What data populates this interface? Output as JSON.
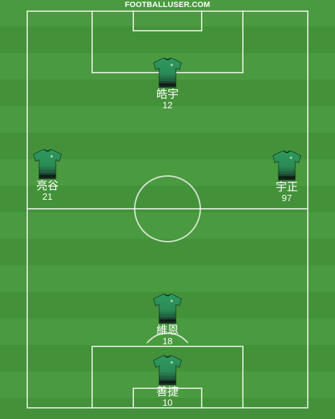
{
  "site": {
    "brand": "FOOTBALLUSER.COM"
  },
  "colors": {
    "pitch_light": "#4a9a3f",
    "pitch_dark": "#43923a",
    "shirt": "#2e8f5a",
    "shirt_dark": "#1c2a22",
    "lines": "#ffffff"
  },
  "players": [
    {
      "name": "皓宇",
      "number": "12"
    },
    {
      "name": "亮谷",
      "number": "21"
    },
    {
      "name": "宇正",
      "number": "97"
    },
    {
      "name": "維恩",
      "number": "18"
    },
    {
      "name": "善捷",
      "number": "10"
    }
  ]
}
